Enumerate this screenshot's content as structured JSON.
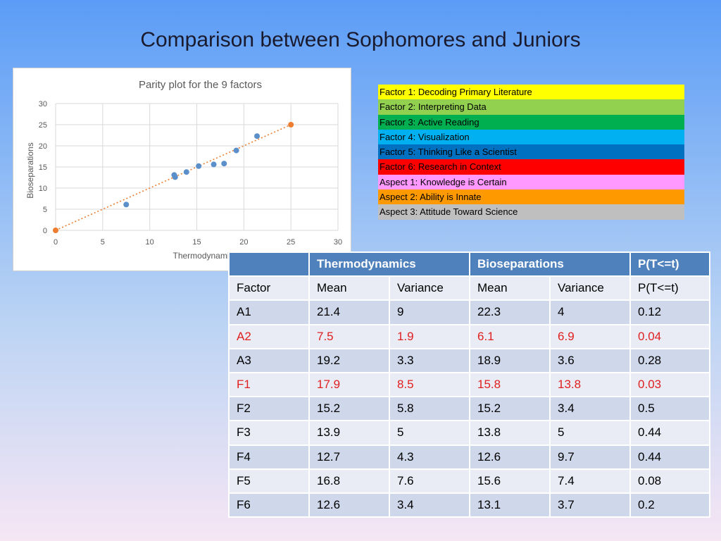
{
  "slide": {
    "title": "Comparison between Sophomores and Juniors"
  },
  "chart_data": {
    "type": "scatter",
    "title": "Parity plot for the 9 factors",
    "xlabel": "Thermodynamics",
    "ylabel": "Bioseparations",
    "xlim": [
      0,
      30
    ],
    "ylim": [
      0,
      30
    ],
    "xticks": [
      0,
      5,
      10,
      15,
      20,
      25,
      30
    ],
    "yticks": [
      0,
      5,
      10,
      15,
      20,
      25,
      30
    ],
    "grid": true,
    "series": [
      {
        "color": "#5b8fc9",
        "points": [
          [
            21.4,
            22.3
          ],
          [
            7.5,
            6.1
          ],
          [
            19.2,
            18.9
          ],
          [
            17.9,
            15.8
          ],
          [
            15.2,
            15.2
          ],
          [
            13.9,
            13.8
          ],
          [
            12.7,
            12.6
          ],
          [
            16.8,
            15.6
          ],
          [
            12.6,
            13.1
          ]
        ]
      },
      {
        "color": "#ed7d31",
        "points": [
          [
            0,
            0
          ],
          [
            25,
            25
          ]
        ],
        "trendline": "dotted"
      }
    ]
  },
  "legend": {
    "items": [
      {
        "label": "Factor 1: Decoding Primary Literature",
        "color": "#ffff00"
      },
      {
        "label": "Factor 2: Interpreting Data",
        "color": "#92d050"
      },
      {
        "label": "Factor 3: Active Reading",
        "color": "#00b050"
      },
      {
        "label": "Factor 4: Visualization",
        "color": "#00b0f0"
      },
      {
        "label": "Factor 5: Thinking Like a Scientist",
        "color": "#0070c0"
      },
      {
        "label": "Factor 6: Research in Context",
        "color": "#ff0000"
      },
      {
        "label": "Aspect 1: Knowledge is Certain",
        "color": "#ff99ff"
      },
      {
        "label": "Aspect 2: Ability is Innate",
        "color": "#ff9900"
      },
      {
        "label": "Aspect 3: Attitude Toward Science",
        "color": "#bfbfbf"
      }
    ]
  },
  "table": {
    "group_headers": [
      "",
      "Thermodynamics",
      "Bioseparations",
      "P(T<=t)"
    ],
    "columns": [
      "Factor",
      "Mean",
      "Variance",
      "Mean",
      "Variance",
      "P(T<=t)"
    ],
    "rows": [
      {
        "cells": [
          "A1",
          "21.4",
          "9",
          "22.3",
          "4",
          "0.12"
        ],
        "highlight": false
      },
      {
        "cells": [
          "A2",
          "7.5",
          "1.9",
          "6.1",
          "6.9",
          "0.04"
        ],
        "highlight": true
      },
      {
        "cells": [
          "A3",
          "19.2",
          "3.3",
          "18.9",
          "3.6",
          "0.28"
        ],
        "highlight": false
      },
      {
        "cells": [
          "F1",
          "17.9",
          "8.5",
          "15.8",
          "13.8",
          "0.03"
        ],
        "highlight": true
      },
      {
        "cells": [
          "F2",
          "15.2",
          "5.8",
          "15.2",
          "3.4",
          "0.5"
        ],
        "highlight": false
      },
      {
        "cells": [
          "F3",
          "13.9",
          "5",
          "13.8",
          "5",
          "0.44"
        ],
        "highlight": false
      },
      {
        "cells": [
          "F4",
          "12.7",
          "4.3",
          "12.6",
          "9.7",
          "0.44"
        ],
        "highlight": false
      },
      {
        "cells": [
          "F5",
          "16.8",
          "7.6",
          "15.6",
          "7.4",
          "0.08"
        ],
        "highlight": false
      },
      {
        "cells": [
          "F6",
          "12.6",
          "3.4",
          "13.1",
          "3.7",
          "0.2"
        ],
        "highlight": false
      }
    ]
  }
}
